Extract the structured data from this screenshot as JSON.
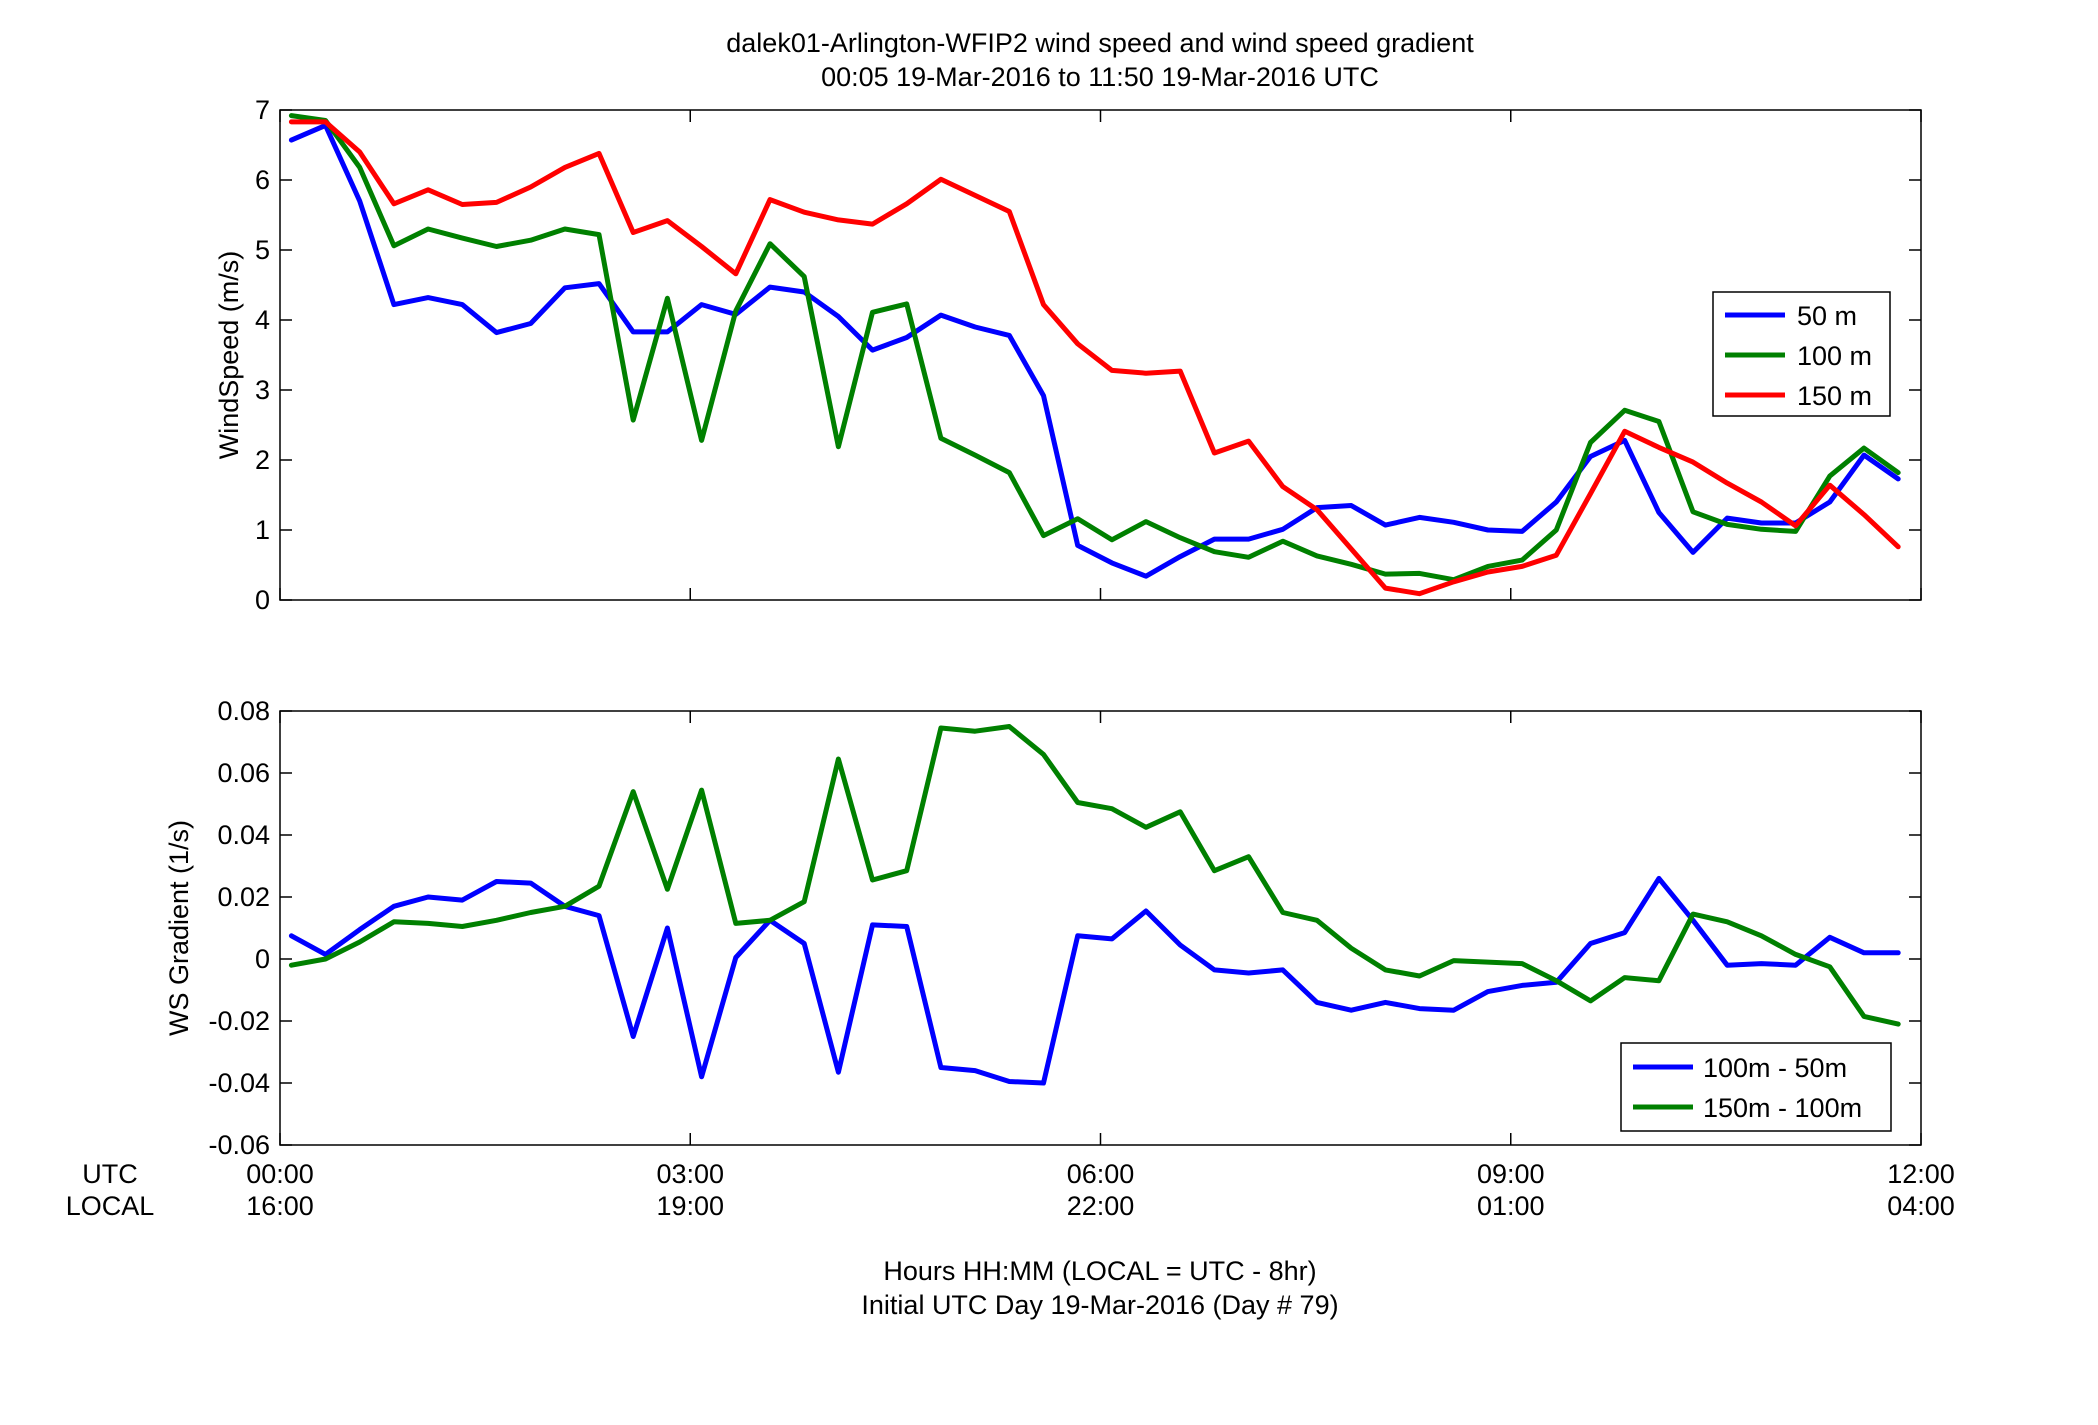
{
  "figure": {
    "title_line1": "dalek01-Arlington-WFIP2  wind speed and wind speed gradient",
    "title_line2": "00:05 19-Mar-2016 to 11:50 19-Mar-2016  UTC",
    "row_label_utc": "UTC",
    "row_label_local": "LOCAL",
    "xlabel_line1": "Hours HH:MM  (LOCAL = UTC - 8hr)",
    "xlabel_line2": "Initial UTC Day 19-Mar-2016 (Day # 79)"
  },
  "colors": {
    "blue": "#0000ff",
    "green": "#008000",
    "red": "#ff0000"
  },
  "chart_data": [
    {
      "type": "line",
      "title": "dalek01-Arlington-WFIP2  wind speed and wind speed gradient",
      "ylabel": "WindSpeed (m/s)",
      "xlim": [
        0,
        12
      ],
      "ylim": [
        0,
        7
      ],
      "yticks": [
        0,
        1,
        2,
        3,
        4,
        5,
        6,
        7
      ],
      "ytick_labels": [
        "0",
        "1",
        "2",
        "3",
        "4",
        "5",
        "6",
        "7"
      ],
      "grid": false,
      "legend_position": "right",
      "x": [
        0.083,
        0.333,
        0.583,
        0.833,
        1.083,
        1.333,
        1.583,
        1.833,
        2.083,
        2.333,
        2.583,
        2.833,
        3.083,
        3.333,
        3.583,
        3.833,
        4.083,
        4.333,
        4.583,
        4.833,
        5.083,
        5.333,
        5.583,
        5.833,
        6.083,
        6.333,
        6.583,
        6.833,
        7.083,
        7.333,
        7.583,
        7.833,
        8.083,
        8.333,
        8.583,
        8.833,
        9.083,
        9.333,
        9.583,
        9.833,
        10.083,
        10.333,
        10.583,
        10.833,
        11.083,
        11.333,
        11.583,
        11.833
      ],
      "series": [
        {
          "name": "50 m",
          "color": "#0000ff",
          "values": [
            6.57,
            6.78,
            5.7,
            4.22,
            4.32,
            4.22,
            3.82,
            3.95,
            4.46,
            4.52,
            3.83,
            3.83,
            4.22,
            4.08,
            4.47,
            4.4,
            4.05,
            3.57,
            3.75,
            4.07,
            3.9,
            3.78,
            2.92,
            0.78,
            0.53,
            0.34,
            0.62,
            0.87,
            0.87,
            1.01,
            1.32,
            1.35,
            1.07,
            1.18,
            1.11,
            1.0,
            0.98,
            1.4,
            2.05,
            2.28,
            1.25,
            0.68,
            1.17,
            1.1,
            1.1,
            1.4,
            2.07,
            1.73
          ]
        },
        {
          "name": "100 m",
          "color": "#008000",
          "values": [
            6.92,
            6.85,
            6.18,
            5.06,
            5.3,
            5.17,
            5.05,
            5.14,
            5.3,
            5.22,
            2.57,
            4.31,
            2.28,
            4.13,
            5.09,
            4.62,
            2.19,
            4.11,
            4.23,
            2.31,
            2.07,
            1.82,
            0.92,
            1.16,
            0.86,
            1.12,
            0.89,
            0.69,
            0.61,
            0.84,
            0.63,
            0.51,
            0.37,
            0.38,
            0.29,
            0.48,
            0.57,
            1.0,
            2.25,
            2.71,
            2.55,
            1.26,
            1.08,
            1.01,
            0.98,
            1.77,
            2.17,
            1.82
          ]
        },
        {
          "name": "150 m",
          "color": "#ff0000",
          "values": [
            6.83,
            6.83,
            6.4,
            5.66,
            5.86,
            5.65,
            5.68,
            5.9,
            6.18,
            6.38,
            5.25,
            5.42,
            5.05,
            4.66,
            5.72,
            5.54,
            5.43,
            5.37,
            5.66,
            6.01,
            5.78,
            5.55,
            4.22,
            3.66,
            3.28,
            3.24,
            3.27,
            2.1,
            2.27,
            1.62,
            1.29,
            0.73,
            0.17,
            0.09,
            0.26,
            0.4,
            0.48,
            0.64,
            1.52,
            2.41,
            2.18,
            1.97,
            1.67,
            1.4,
            1.06,
            1.64,
            1.22,
            0.76
          ]
        }
      ]
    },
    {
      "type": "line",
      "ylabel": "WS Gradient (1/s)",
      "xlim": [
        0,
        12
      ],
      "ylim": [
        -0.06,
        0.08
      ],
      "yticks": [
        -0.06,
        -0.04,
        -0.02,
        0,
        0.02,
        0.04,
        0.06,
        0.08
      ],
      "ytick_labels": [
        "-0.06",
        "-0.04",
        "-0.02",
        "0",
        "0.02",
        "0.04",
        "0.06",
        "0.08"
      ],
      "xticks": [
        0,
        3,
        6,
        9,
        12
      ],
      "xtick_labels_utc": [
        "00:00",
        "03:00",
        "06:00",
        "09:00",
        "12:00"
      ],
      "xtick_labels_local": [
        "16:00",
        "19:00",
        "22:00",
        "01:00",
        "04:00"
      ],
      "grid": false,
      "legend_position": "bottom-right",
      "x": [
        0.083,
        0.333,
        0.583,
        0.833,
        1.083,
        1.333,
        1.583,
        1.833,
        2.083,
        2.333,
        2.583,
        2.833,
        3.083,
        3.333,
        3.583,
        3.833,
        4.083,
        4.333,
        4.583,
        4.833,
        5.083,
        5.333,
        5.583,
        5.833,
        6.083,
        6.333,
        6.583,
        6.833,
        7.083,
        7.333,
        7.583,
        7.833,
        8.083,
        8.333,
        8.583,
        8.833,
        9.083,
        9.333,
        9.583,
        9.833,
        10.083,
        10.333,
        10.583,
        10.833,
        11.083,
        11.333,
        11.583,
        11.833
      ],
      "series": [
        {
          "name": "100m - 50m",
          "color": "#0000ff",
          "values": [
            0.0075,
            0.0015,
            0.0095,
            0.017,
            0.02,
            0.019,
            0.025,
            0.0245,
            0.017,
            0.014,
            -0.025,
            0.01,
            -0.038,
            0.0005,
            0.0125,
            0.005,
            -0.0365,
            0.011,
            0.0105,
            -0.035,
            -0.036,
            -0.0395,
            -0.04,
            0.0075,
            0.0065,
            0.0155,
            0.0045,
            -0.0035,
            -0.0045,
            -0.0035,
            -0.014,
            -0.0165,
            -0.014,
            -0.016,
            -0.0165,
            -0.0105,
            -0.0085,
            -0.0075,
            0.005,
            0.0085,
            0.026,
            0.0125,
            -0.002,
            -0.0015,
            -0.002,
            0.007,
            0.002,
            0.002
          ]
        },
        {
          "name": "150m - 100m",
          "color": "#008000",
          "values": [
            -0.002,
            0.0,
            0.0055,
            0.012,
            0.0115,
            0.0105,
            0.0125,
            0.015,
            0.017,
            0.0235,
            0.054,
            0.0225,
            0.0545,
            0.0115,
            0.0125,
            0.0185,
            0.0645,
            0.0255,
            0.0285,
            0.0745,
            0.0735,
            0.075,
            0.066,
            0.0505,
            0.0485,
            0.0425,
            0.0475,
            0.0285,
            0.033,
            0.015,
            0.0125,
            0.0035,
            -0.0035,
            -0.0055,
            -0.0005,
            -0.001,
            -0.0015,
            -0.007,
            -0.0135,
            -0.006,
            -0.007,
            0.0145,
            0.012,
            0.0075,
            0.0015,
            -0.0025,
            -0.0185,
            -0.021
          ]
        }
      ]
    }
  ]
}
